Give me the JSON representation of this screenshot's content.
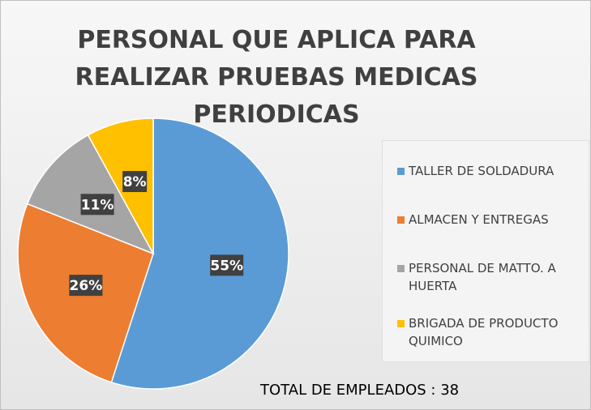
{
  "chart_data": {
    "type": "pie",
    "title": "PERSONAL QUE APLICA PARA REALIZAR PRUEBAS MEDICAS PERIODICAS",
    "categories": [
      "TALLER DE SOLDADURA",
      "ALMACEN Y ENTREGAS",
      "PERSONAL DE MATTO. A HUERTA",
      "BRIGADA DE PRODUCTO QUIMICO"
    ],
    "values": [
      55,
      26,
      11,
      8
    ],
    "value_labels": [
      "55%",
      "26%",
      "11%",
      "8%"
    ],
    "colors": [
      "#5b9bd5",
      "#ed7d31",
      "#a5a5a5",
      "#ffc000"
    ],
    "legend": "right",
    "annotation": "TOTAL DE EMPLEADOS : 38"
  }
}
